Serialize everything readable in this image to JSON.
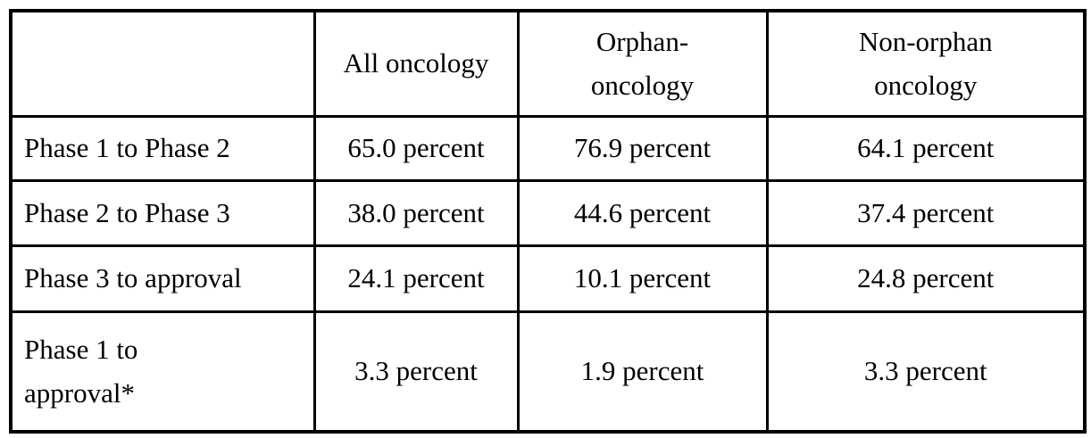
{
  "page": {
    "background_color": "#ffffff",
    "border_color": "#000000",
    "text_color": "#000000"
  },
  "table": {
    "description": "Clinical trial phase transition success rates for oncology drugs",
    "columns": [
      {
        "label": ""
      },
      {
        "label": "All oncology"
      },
      {
        "label": "Orphan-\noncology"
      },
      {
        "label": "Non-orphan\noncology"
      }
    ],
    "rows": [
      {
        "label": "Phase 1 to Phase 2",
        "all_oncology": "65.0 percent",
        "orphan_oncology": "76.9 percent",
        "non_orphan_oncology": "64.1 percent"
      },
      {
        "label": "Phase 2 to Phase 3",
        "all_oncology": "38.0 percent",
        "orphan_oncology": "44.6 percent",
        "non_orphan_oncology": "37.4 percent"
      },
      {
        "label": "Phase 3 to approval",
        "all_oncology": "24.1 percent",
        "orphan_oncology": "10.1 percent",
        "non_orphan_oncology": "24.8 percent"
      },
      {
        "label": "Phase 1 to\napproval*",
        "all_oncology": "3.3 percent",
        "orphan_oncology": "1.9 percent",
        "non_orphan_oncology": "3.3 percent"
      }
    ]
  }
}
